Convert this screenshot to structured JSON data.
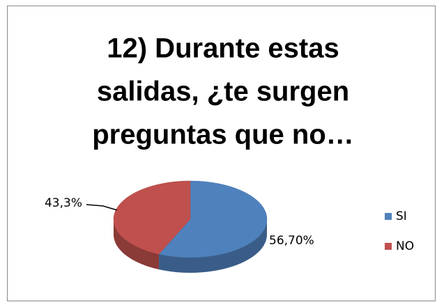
{
  "chart_data": {
    "type": "pie",
    "title": [
      "12) Durante estas",
      "salidas, ¿te surgen",
      "preguntas que no…"
    ],
    "categories": [
      "SI",
      "NO"
    ],
    "values": [
      56.7,
      43.3
    ],
    "value_labels": [
      "56,70%",
      "43,3%"
    ],
    "colors": [
      "#4f81bd",
      "#c0504d"
    ],
    "legend": "right"
  }
}
